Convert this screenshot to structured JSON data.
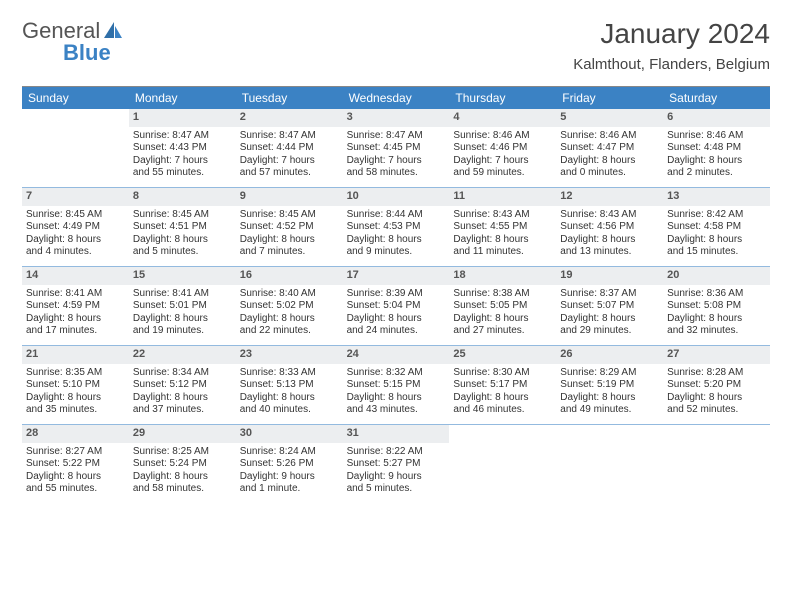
{
  "logo": {
    "text_a": "General",
    "text_b": "Blue"
  },
  "title": "January 2024",
  "location": "Kalmthout, Flanders, Belgium",
  "colors": {
    "accent": "#3b82c4",
    "header_text": "#ffffff",
    "daynum_bg": "#eceef0",
    "body_text": "#333333",
    "separator": "#3b82c4"
  },
  "weekdays": [
    "Sunday",
    "Monday",
    "Tuesday",
    "Wednesday",
    "Thursday",
    "Friday",
    "Saturday"
  ],
  "weeks": [
    [
      {
        "empty": true
      },
      {
        "day": "1",
        "sunrise": "Sunrise: 8:47 AM",
        "sunset": "Sunset: 4:43 PM",
        "daylight1": "Daylight: 7 hours",
        "daylight2": "and 55 minutes."
      },
      {
        "day": "2",
        "sunrise": "Sunrise: 8:47 AM",
        "sunset": "Sunset: 4:44 PM",
        "daylight1": "Daylight: 7 hours",
        "daylight2": "and 57 minutes."
      },
      {
        "day": "3",
        "sunrise": "Sunrise: 8:47 AM",
        "sunset": "Sunset: 4:45 PM",
        "daylight1": "Daylight: 7 hours",
        "daylight2": "and 58 minutes."
      },
      {
        "day": "4",
        "sunrise": "Sunrise: 8:46 AM",
        "sunset": "Sunset: 4:46 PM",
        "daylight1": "Daylight: 7 hours",
        "daylight2": "and 59 minutes."
      },
      {
        "day": "5",
        "sunrise": "Sunrise: 8:46 AM",
        "sunset": "Sunset: 4:47 PM",
        "daylight1": "Daylight: 8 hours",
        "daylight2": "and 0 minutes."
      },
      {
        "day": "6",
        "sunrise": "Sunrise: 8:46 AM",
        "sunset": "Sunset: 4:48 PM",
        "daylight1": "Daylight: 8 hours",
        "daylight2": "and 2 minutes."
      }
    ],
    [
      {
        "day": "7",
        "sunrise": "Sunrise: 8:45 AM",
        "sunset": "Sunset: 4:49 PM",
        "daylight1": "Daylight: 8 hours",
        "daylight2": "and 4 minutes."
      },
      {
        "day": "8",
        "sunrise": "Sunrise: 8:45 AM",
        "sunset": "Sunset: 4:51 PM",
        "daylight1": "Daylight: 8 hours",
        "daylight2": "and 5 minutes."
      },
      {
        "day": "9",
        "sunrise": "Sunrise: 8:45 AM",
        "sunset": "Sunset: 4:52 PM",
        "daylight1": "Daylight: 8 hours",
        "daylight2": "and 7 minutes."
      },
      {
        "day": "10",
        "sunrise": "Sunrise: 8:44 AM",
        "sunset": "Sunset: 4:53 PM",
        "daylight1": "Daylight: 8 hours",
        "daylight2": "and 9 minutes."
      },
      {
        "day": "11",
        "sunrise": "Sunrise: 8:43 AM",
        "sunset": "Sunset: 4:55 PM",
        "daylight1": "Daylight: 8 hours",
        "daylight2": "and 11 minutes."
      },
      {
        "day": "12",
        "sunrise": "Sunrise: 8:43 AM",
        "sunset": "Sunset: 4:56 PM",
        "daylight1": "Daylight: 8 hours",
        "daylight2": "and 13 minutes."
      },
      {
        "day": "13",
        "sunrise": "Sunrise: 8:42 AM",
        "sunset": "Sunset: 4:58 PM",
        "daylight1": "Daylight: 8 hours",
        "daylight2": "and 15 minutes."
      }
    ],
    [
      {
        "day": "14",
        "sunrise": "Sunrise: 8:41 AM",
        "sunset": "Sunset: 4:59 PM",
        "daylight1": "Daylight: 8 hours",
        "daylight2": "and 17 minutes."
      },
      {
        "day": "15",
        "sunrise": "Sunrise: 8:41 AM",
        "sunset": "Sunset: 5:01 PM",
        "daylight1": "Daylight: 8 hours",
        "daylight2": "and 19 minutes."
      },
      {
        "day": "16",
        "sunrise": "Sunrise: 8:40 AM",
        "sunset": "Sunset: 5:02 PM",
        "daylight1": "Daylight: 8 hours",
        "daylight2": "and 22 minutes."
      },
      {
        "day": "17",
        "sunrise": "Sunrise: 8:39 AM",
        "sunset": "Sunset: 5:04 PM",
        "daylight1": "Daylight: 8 hours",
        "daylight2": "and 24 minutes."
      },
      {
        "day": "18",
        "sunrise": "Sunrise: 8:38 AM",
        "sunset": "Sunset: 5:05 PM",
        "daylight1": "Daylight: 8 hours",
        "daylight2": "and 27 minutes."
      },
      {
        "day": "19",
        "sunrise": "Sunrise: 8:37 AM",
        "sunset": "Sunset: 5:07 PM",
        "daylight1": "Daylight: 8 hours",
        "daylight2": "and 29 minutes."
      },
      {
        "day": "20",
        "sunrise": "Sunrise: 8:36 AM",
        "sunset": "Sunset: 5:08 PM",
        "daylight1": "Daylight: 8 hours",
        "daylight2": "and 32 minutes."
      }
    ],
    [
      {
        "day": "21",
        "sunrise": "Sunrise: 8:35 AM",
        "sunset": "Sunset: 5:10 PM",
        "daylight1": "Daylight: 8 hours",
        "daylight2": "and 35 minutes."
      },
      {
        "day": "22",
        "sunrise": "Sunrise: 8:34 AM",
        "sunset": "Sunset: 5:12 PM",
        "daylight1": "Daylight: 8 hours",
        "daylight2": "and 37 minutes."
      },
      {
        "day": "23",
        "sunrise": "Sunrise: 8:33 AM",
        "sunset": "Sunset: 5:13 PM",
        "daylight1": "Daylight: 8 hours",
        "daylight2": "and 40 minutes."
      },
      {
        "day": "24",
        "sunrise": "Sunrise: 8:32 AM",
        "sunset": "Sunset: 5:15 PM",
        "daylight1": "Daylight: 8 hours",
        "daylight2": "and 43 minutes."
      },
      {
        "day": "25",
        "sunrise": "Sunrise: 8:30 AM",
        "sunset": "Sunset: 5:17 PM",
        "daylight1": "Daylight: 8 hours",
        "daylight2": "and 46 minutes."
      },
      {
        "day": "26",
        "sunrise": "Sunrise: 8:29 AM",
        "sunset": "Sunset: 5:19 PM",
        "daylight1": "Daylight: 8 hours",
        "daylight2": "and 49 minutes."
      },
      {
        "day": "27",
        "sunrise": "Sunrise: 8:28 AM",
        "sunset": "Sunset: 5:20 PM",
        "daylight1": "Daylight: 8 hours",
        "daylight2": "and 52 minutes."
      }
    ],
    [
      {
        "day": "28",
        "sunrise": "Sunrise: 8:27 AM",
        "sunset": "Sunset: 5:22 PM",
        "daylight1": "Daylight: 8 hours",
        "daylight2": "and 55 minutes."
      },
      {
        "day": "29",
        "sunrise": "Sunrise: 8:25 AM",
        "sunset": "Sunset: 5:24 PM",
        "daylight1": "Daylight: 8 hours",
        "daylight2": "and 58 minutes."
      },
      {
        "day": "30",
        "sunrise": "Sunrise: 8:24 AM",
        "sunset": "Sunset: 5:26 PM",
        "daylight1": "Daylight: 9 hours",
        "daylight2": "and 1 minute."
      },
      {
        "day": "31",
        "sunrise": "Sunrise: 8:22 AM",
        "sunset": "Sunset: 5:27 PM",
        "daylight1": "Daylight: 9 hours",
        "daylight2": "and 5 minutes."
      },
      {
        "empty": true
      },
      {
        "empty": true
      },
      {
        "empty": true
      }
    ]
  ]
}
